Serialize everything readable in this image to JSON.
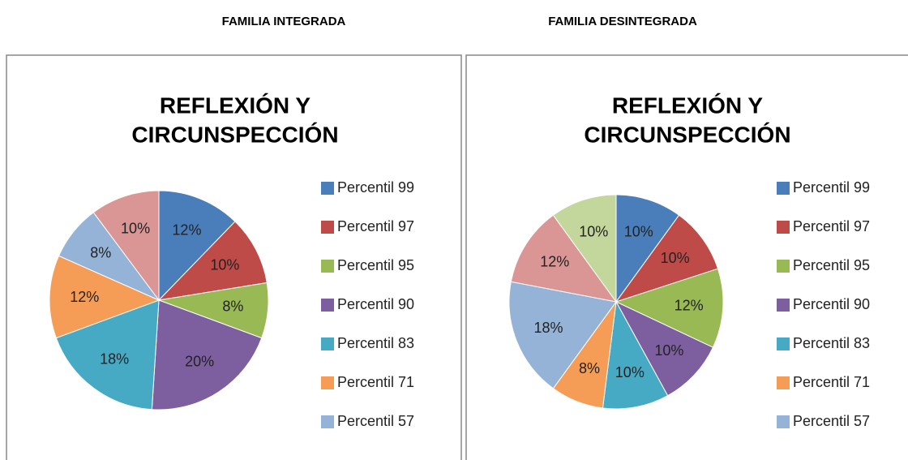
{
  "headers": [
    "FAMILIA INTEGRADA",
    "FAMILIA DESINTEGRADA"
  ],
  "chart_data": [
    {
      "type": "pie",
      "title": [
        "REFLEXIÓN Y",
        "CIRCUNSPECCIÓN"
      ],
      "categories": [
        "Percentil 99",
        "Percentil 97",
        "Percentil 95",
        "Percentil 90",
        "Percentil 83",
        "Percentil 71",
        "Percentil 57",
        null
      ],
      "values": [
        12,
        10,
        8,
        20,
        18,
        12,
        8,
        10
      ],
      "value_labels": [
        "12%",
        "10%",
        "8%",
        "20%",
        "18%",
        "12%",
        "8%",
        "10%"
      ],
      "colors": [
        "#4a7ebb",
        "#be4b48",
        "#98b954",
        "#7d5fa0",
        "#46aac5",
        "#f59d56",
        "#95b3d7",
        "#d99694"
      ]
    },
    {
      "type": "pie",
      "title": [
        "REFLEXIÓN Y",
        "CIRCUNSPECCIÓN"
      ],
      "categories": [
        "Percentil 99",
        "Percentil 97",
        "Percentil 95",
        "Percentil 90",
        "Percentil 83",
        "Percentil 71",
        "Percentil 57",
        null,
        null
      ],
      "values": [
        10,
        10,
        12,
        10,
        10,
        8,
        18,
        12,
        10
      ],
      "value_labels": [
        "10%",
        "10%",
        "12%",
        "10%",
        "10%",
        "8%",
        "18%",
        "12%",
        "10%"
      ],
      "colors": [
        "#4a7ebb",
        "#be4b48",
        "#98b954",
        "#7d5fa0",
        "#46aac5",
        "#f59d56",
        "#95b3d7",
        "#d99694",
        "#c3d69b"
      ]
    }
  ]
}
